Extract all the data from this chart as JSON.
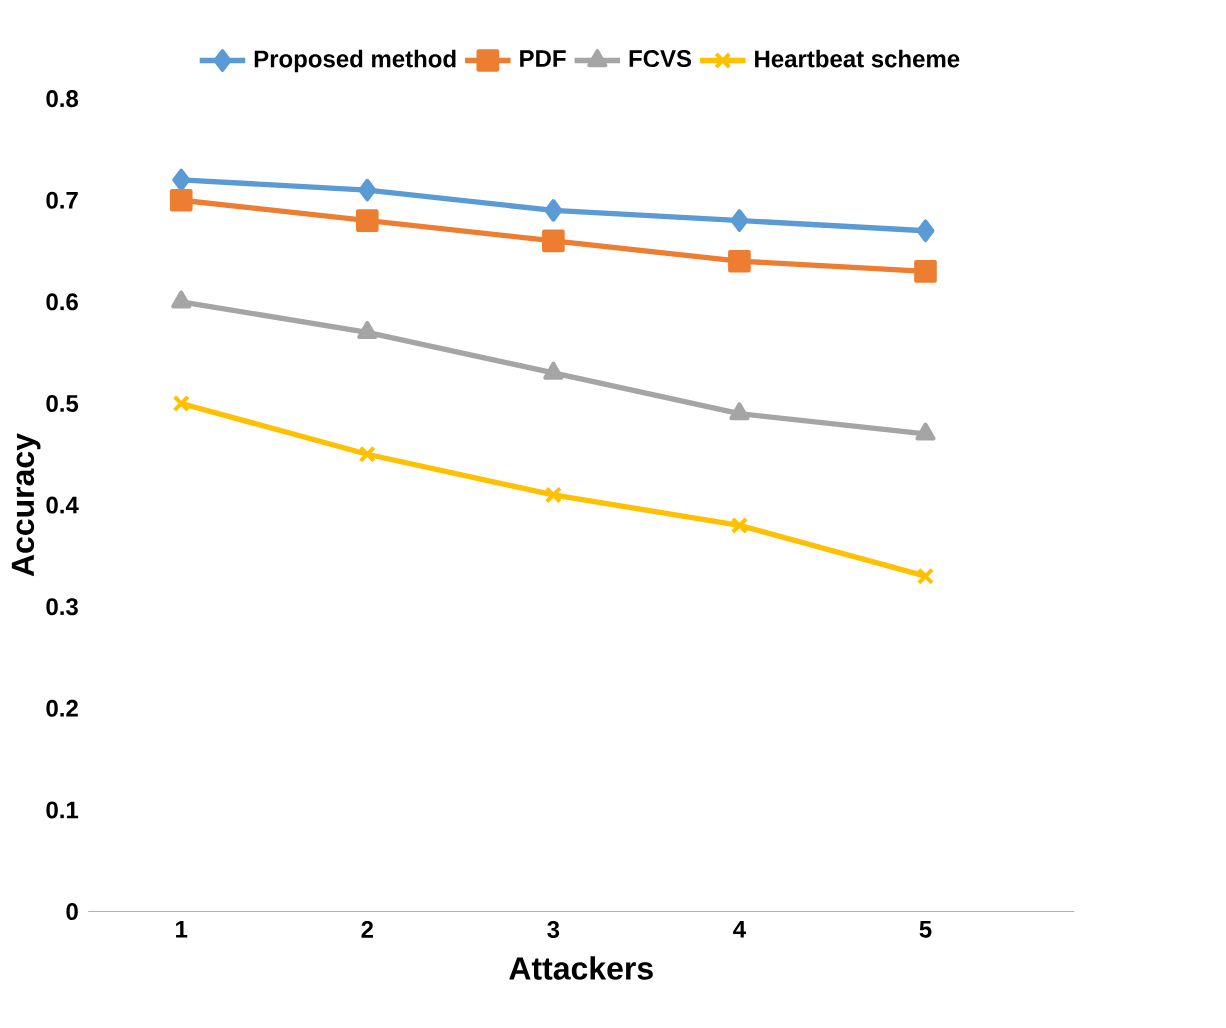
{
  "chart_data": {
    "type": "line",
    "xlabel": "Attackers",
    "ylabel": "Accuracy",
    "categories": [
      "1",
      "2",
      "3",
      "4",
      "5"
    ],
    "series": [
      {
        "name": "Proposed method",
        "color": "#5b9bd5",
        "marker": "diamond",
        "values": [
          0.72,
          0.71,
          0.69,
          0.68,
          0.67
        ]
      },
      {
        "name": "PDF",
        "color": "#ed7d31",
        "marker": "square",
        "values": [
          0.7,
          0.68,
          0.66,
          0.64,
          0.63
        ]
      },
      {
        "name": "FCVS",
        "color": "#a5a5a5",
        "marker": "triangle",
        "values": [
          0.6,
          0.57,
          0.53,
          0.49,
          0.47
        ]
      },
      {
        "name": "Heartbeat scheme",
        "color": "#ffc000",
        "marker": "cross",
        "values": [
          0.5,
          0.45,
          0.41,
          0.38,
          0.33
        ]
      }
    ],
    "ylim": [
      0,
      0.8
    ],
    "yticks": [
      0,
      0.1,
      0.2,
      0.3,
      0.4,
      0.5,
      0.6,
      0.7,
      0.8
    ],
    "grid": false,
    "legend": "top",
    "line_style": "solid"
  }
}
